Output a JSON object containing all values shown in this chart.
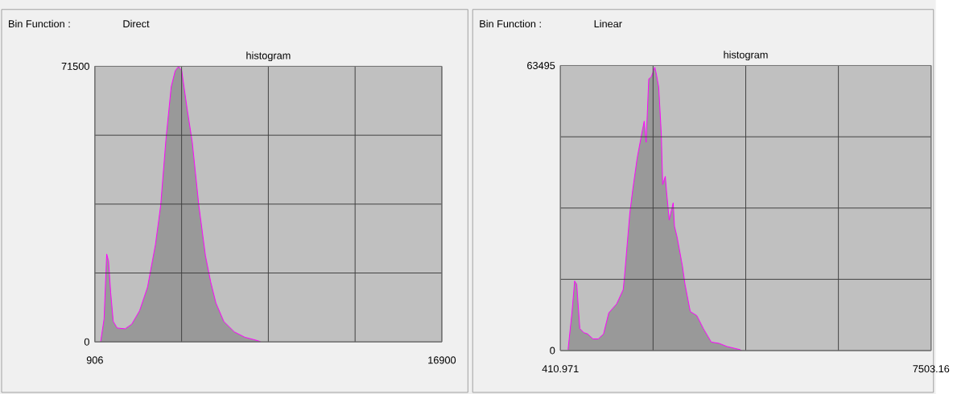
{
  "chart_data": [
    {
      "type": "area",
      "title": "histogram",
      "annotations": [
        "Bin Function :",
        "Direct"
      ],
      "color": "#ff00ff",
      "grid": true,
      "xlim": [
        906,
        16900
      ],
      "ylim": [
        0,
        71500
      ],
      "xticks": [
        906,
        {
          "value": 4904.5,
          "label": null
        },
        {
          "value": 8903,
          "label": null
        },
        {
          "value": 12901.5,
          "label": null
        },
        16900
      ],
      "yticks": [
        0,
        {
          "value": 17875,
          "label": null
        },
        {
          "value": 35750,
          "label": null
        },
        {
          "value": 53625,
          "label": null
        },
        71500
      ],
      "x": [
        1173,
        1331,
        1452,
        1537,
        1634,
        1755,
        1937,
        2301,
        2605,
        2969,
        3333,
        3697,
        3940,
        4182,
        4425,
        4607,
        4765,
        4911,
        5154,
        5397,
        5700,
        6004,
        6245,
        6488,
        6852,
        7337,
        7823,
        8430,
        8551
      ],
      "values": [
        0,
        6000,
        22800,
        21000,
        12900,
        5300,
        3600,
        3400,
        4600,
        8100,
        14200,
        25200,
        35400,
        52500,
        66200,
        70300,
        71500,
        70300,
        60700,
        51800,
        35400,
        22400,
        15600,
        10100,
        5300,
        2600,
        1200,
        300,
        0
      ]
    },
    {
      "type": "area",
      "title": "histogram",
      "annotations": [
        "Bin Function :",
        "Linear"
      ],
      "color": "#ff00ff",
      "grid": true,
      "xlim": [
        410.971,
        7503.16
      ],
      "ylim": [
        0,
        63495
      ],
      "xticks": [
        410.971,
        {
          "value": 2184.02,
          "label": null
        },
        {
          "value": 3957.07,
          "label": null
        },
        {
          "value": 5730.11,
          "label": null
        },
        7503.16
      ],
      "yticks": [
        0,
        {
          "value": 15873.75,
          "label": null
        },
        {
          "value": 31747.5,
          "label": null
        },
        {
          "value": 47621.25,
          "label": null
        },
        63495
      ],
      "x": [
        557,
        632,
        683,
        723,
        783,
        859,
        934,
        1035,
        1135,
        1236,
        1336,
        1487,
        1613,
        1638,
        1739,
        1789,
        1880,
        1965,
        2015,
        2051,
        2101,
        2151,
        2217,
        2242,
        2292,
        2342,
        2368,
        2418,
        2443,
        2493,
        2569,
        2594,
        2644,
        2745,
        2795,
        2896,
        3021,
        3147,
        3298,
        3449,
        3600,
        3851,
        3876
      ],
      "values": [
        200,
        8400,
        15500,
        14800,
        4900,
        4000,
        3700,
        2600,
        2600,
        3700,
        8400,
        10400,
        13600,
        16600,
        30600,
        35300,
        42900,
        48200,
        51100,
        46400,
        60500,
        61000,
        63100,
        61900,
        58700,
        48200,
        37000,
        38800,
        35300,
        29100,
        32900,
        27700,
        25300,
        18900,
        14800,
        8700,
        7800,
        4900,
        1900,
        1600,
        900,
        200,
        0
      ]
    }
  ]
}
